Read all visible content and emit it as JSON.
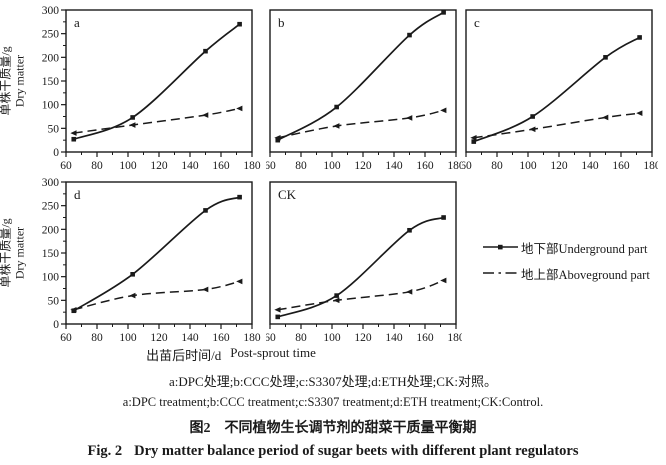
{
  "figure": {
    "ink_color": "#1a1a1a",
    "x_axis_label_cn": "出苗后时间/d",
    "x_axis_label_en": "Post-sprout time",
    "y_axis_label_cn": "单株干质量/g",
    "y_axis_label_en": "Dry matter",
    "note_cn": "a:DPC处理;b:CCC处理;c:S3307处理;d:ETH处理;CK:对照。",
    "note_en": "a:DPC treatment;b:CCC treatment;c:S3307 treatment;d:ETH treatment;CK:Control.",
    "title_cn_prefix": "图2",
    "title_cn": "不同植物生长调节剂的甜菜干质量平衡期",
    "title_en_prefix": "Fig. 2",
    "title_en": "Dry matter balance period of sugar beets with different plant regulators"
  },
  "axes": {
    "xlim": [
      60,
      180
    ],
    "ylim": [
      0,
      300
    ],
    "xticks": [
      60,
      80,
      100,
      120,
      140,
      160,
      180
    ],
    "yticks": [
      0,
      50,
      100,
      150,
      200,
      250,
      300
    ],
    "x_minor_step": 10,
    "y_minor_step": 25,
    "grid": "off"
  },
  "legend": {
    "position": "right of bottom row",
    "items": [
      {
        "label": "地下部Underground part",
        "style": "solid line, filled square marker"
      },
      {
        "label": "地上部Aboveground part",
        "style": "dash-dot line, small marker"
      }
    ]
  },
  "chart_data": [
    {
      "type": "line",
      "panel": "a",
      "treatment": "DPC",
      "x": [
        65,
        103,
        150,
        172
      ],
      "series": [
        {
          "name": "地下部Underground part",
          "values": [
            27,
            73,
            213,
            270
          ]
        },
        {
          "name": "地上部Aboveground part",
          "values": [
            40,
            57,
            78,
            92
          ]
        }
      ],
      "xlabel": "出苗后时间/d Post-sprout time",
      "ylabel": "单株干质量/g Dry matter",
      "xlim": [
        60,
        180
      ],
      "ylim": [
        0,
        300
      ]
    },
    {
      "type": "line",
      "panel": "b",
      "treatment": "CCC",
      "x": [
        65,
        103,
        150,
        172
      ],
      "series": [
        {
          "name": "地下部Underground part",
          "values": [
            25,
            95,
            247,
            295
          ]
        },
        {
          "name": "地上部Aboveground part",
          "values": [
            30,
            55,
            72,
            88
          ]
        }
      ],
      "xlabel": "出苗后时间/d Post-sprout time",
      "ylabel": "单株干质量/g Dry matter",
      "xlim": [
        60,
        180
      ],
      "ylim": [
        0,
        300
      ]
    },
    {
      "type": "line",
      "panel": "c",
      "treatment": "S3307",
      "x": [
        65,
        103,
        150,
        172
      ],
      "series": [
        {
          "name": "地下部Underground part",
          "values": [
            22,
            75,
            200,
            242
          ]
        },
        {
          "name": "地上部Aboveground part",
          "values": [
            30,
            48,
            73,
            82
          ]
        }
      ],
      "xlabel": "出苗后时间/d Post-sprout time",
      "ylabel": "单株干质量/g Dry matter",
      "xlim": [
        60,
        180
      ],
      "ylim": [
        0,
        300
      ]
    },
    {
      "type": "line",
      "panel": "d",
      "treatment": "ETH",
      "x": [
        65,
        103,
        150,
        172
      ],
      "series": [
        {
          "name": "地下部Underground part",
          "values": [
            28,
            105,
            240,
            268
          ]
        },
        {
          "name": "地上部Aboveground part",
          "values": [
            30,
            60,
            73,
            90
          ]
        }
      ],
      "xlabel": "出苗后时间/d Post-sprout time",
      "ylabel": "单株干质量/g Dry matter",
      "xlim": [
        60,
        180
      ],
      "ylim": [
        0,
        300
      ]
    },
    {
      "type": "line",
      "panel": "CK",
      "treatment": "Control",
      "x": [
        65,
        103,
        150,
        172
      ],
      "series": [
        {
          "name": "地下部Underground part",
          "values": [
            15,
            60,
            198,
            225
          ]
        },
        {
          "name": "地上部Aboveground part",
          "values": [
            30,
            50,
            68,
            92
          ]
        }
      ],
      "xlabel": "出苗后时间/d Post-sprout time",
      "ylabel": "单株干质量/g Dry matter",
      "xlim": [
        60,
        180
      ],
      "ylim": [
        0,
        300
      ]
    }
  ]
}
